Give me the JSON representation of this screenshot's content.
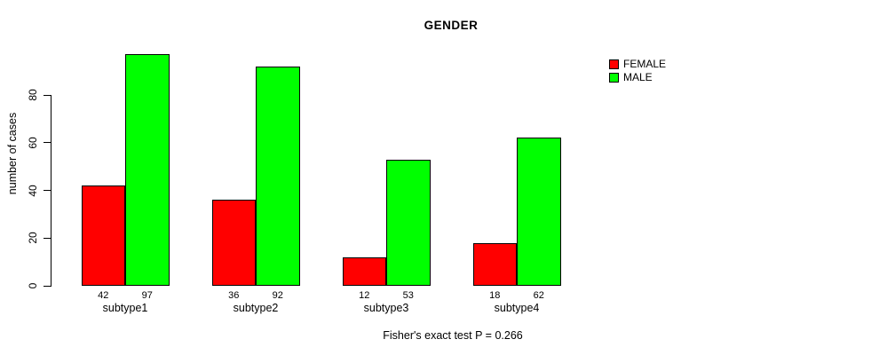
{
  "title": "GENDER",
  "ylabel": "number of cases",
  "caption": "Fisher's exact test P = 0.266",
  "legend": [
    {
      "label": "FEMALE",
      "color": "#ff0000"
    },
    {
      "label": "MALE",
      "color": "#00ff00"
    }
  ],
  "chart_data": {
    "type": "bar",
    "title": "GENDER",
    "ylabel": "number of cases",
    "xlabel": "",
    "categories": [
      "subtype1",
      "subtype2",
      "subtype3",
      "subtype4"
    ],
    "series": [
      {
        "name": "FEMALE",
        "color": "#ff0000",
        "values": [
          42,
          36,
          12,
          18
        ]
      },
      {
        "name": "MALE",
        "color": "#00ff00",
        "values": [
          97,
          92,
          53,
          62
        ]
      }
    ],
    "yticks": [
      0,
      20,
      40,
      60,
      80
    ],
    "ylim": [
      0,
      100
    ],
    "bar_labels": true,
    "grid": false,
    "legend_position": "top-right",
    "annotation": "Fisher's exact test P = 0.266"
  }
}
